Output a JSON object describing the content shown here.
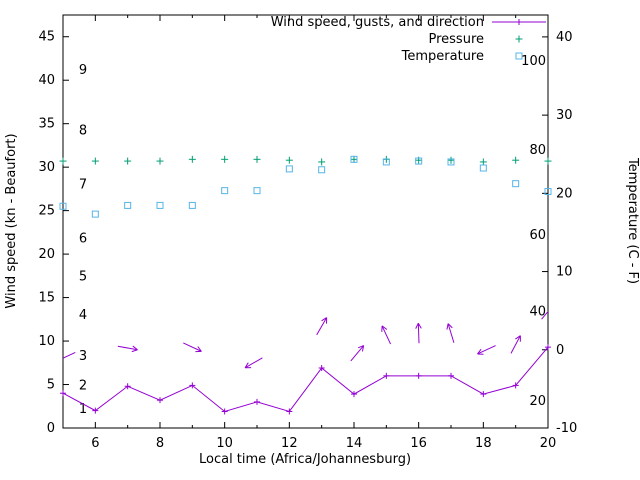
{
  "chart_data": {
    "type": "line",
    "title": "",
    "xlabel": "Local time (Africa/Johannesburg)",
    "ylabel_left": "Wind speed (kn - Beaufort)",
    "ylabel_right": "Temperature (C - F)",
    "x_range": [
      5,
      20
    ],
    "x_major_ticks": [
      6,
      8,
      10,
      12,
      14,
      16,
      18,
      20
    ],
    "x_minor_ticks": [
      5,
      7,
      9,
      11,
      13,
      15,
      17,
      19
    ],
    "y_left_range": [
      0,
      47.5
    ],
    "y_left_ticks": [
      0,
      5,
      10,
      15,
      20,
      25,
      30,
      35,
      40,
      45
    ],
    "y_right_range": [
      -10,
      42.8
    ],
    "y_right_ticks": [
      -10,
      0,
      10,
      20,
      30,
      40
    ],
    "grid": false,
    "legend_position": "top-right",
    "beaufort_labels": [
      {
        "label": "1",
        "y": 2.2
      },
      {
        "label": "2",
        "y": 4.9
      },
      {
        "label": "3",
        "y": 8.3
      },
      {
        "label": "4",
        "y": 13.0
      },
      {
        "label": "5",
        "y": 17.4
      },
      {
        "label": "6",
        "y": 21.8
      },
      {
        "label": "7",
        "y": 28.0
      },
      {
        "label": "8",
        "y": 34.2
      },
      {
        "label": "9",
        "y": 41.2
      }
    ],
    "fahrenheit_labels": [
      {
        "label": "20",
        "y": 3.1
      },
      {
        "label": "40",
        "y": 13.4
      },
      {
        "label": "60",
        "y": 22.2
      },
      {
        "label": "80",
        "y": 32.0
      },
      {
        "label": "100",
        "y": 42.2
      }
    ],
    "colors": {
      "wind": "#9400d3",
      "pressure": "#009e73",
      "temperature": "#56b4e9",
      "axis": "#000000"
    },
    "legend": [
      {
        "label": "Wind speed, gusts, and direction",
        "series": "wind",
        "marker": "line-plus"
      },
      {
        "label": "Pressure",
        "series": "pressure",
        "marker": "plus"
      },
      {
        "label": "Temperature",
        "series": "temperature",
        "marker": "square"
      }
    ],
    "x": [
      5,
      6,
      7,
      8,
      9,
      10,
      11,
      12,
      13,
      14,
      15,
      16,
      17,
      18,
      19,
      20
    ],
    "series": [
      {
        "name": "wind_speed",
        "axis": "left",
        "values": [
          4.0,
          2.0,
          4.8,
          3.2,
          4.9,
          1.9,
          3.0,
          1.9,
          6.9,
          3.9,
          6.0,
          6.0,
          6.0,
          3.9,
          4.9,
          9.3
        ]
      },
      {
        "name": "pressure",
        "axis": "left",
        "values": [
          30.7,
          30.7,
          30.7,
          30.7,
          30.9,
          30.9,
          30.9,
          30.8,
          30.6,
          30.9,
          30.9,
          30.8,
          30.8,
          30.6,
          30.8,
          30.7
        ]
      },
      {
        "name": "temperature",
        "axis": "left",
        "values": [
          25.5,
          24.6,
          25.6,
          25.6,
          25.6,
          27.3,
          27.3,
          29.8,
          29.7,
          30.9,
          30.6,
          30.7,
          30.6,
          29.9,
          28.1,
          27.2
        ]
      }
    ],
    "wind_arrows": [
      {
        "x": 5.1,
        "y": 8.2,
        "angle": 205
      },
      {
        "x": 7.0,
        "y": 9.2,
        "angle": 350
      },
      {
        "x": 9.0,
        "y": 9.3,
        "angle": 335
      },
      {
        "x": 10.9,
        "y": 7.5,
        "angle": 210
      },
      {
        "x": 13.0,
        "y": 11.7,
        "angle": 60
      },
      {
        "x": 14.1,
        "y": 8.6,
        "angle": 50
      },
      {
        "x": 15.0,
        "y": 10.7,
        "angle": 115
      },
      {
        "x": 16.0,
        "y": 10.9,
        "angle": 92
      },
      {
        "x": 17.0,
        "y": 10.9,
        "angle": 107
      },
      {
        "x": 18.1,
        "y": 9.0,
        "angle": 205
      },
      {
        "x": 19.0,
        "y": 9.6,
        "angle": 62
      },
      {
        "x": 20.0,
        "y": 13.4,
        "angle": 50
      }
    ]
  }
}
